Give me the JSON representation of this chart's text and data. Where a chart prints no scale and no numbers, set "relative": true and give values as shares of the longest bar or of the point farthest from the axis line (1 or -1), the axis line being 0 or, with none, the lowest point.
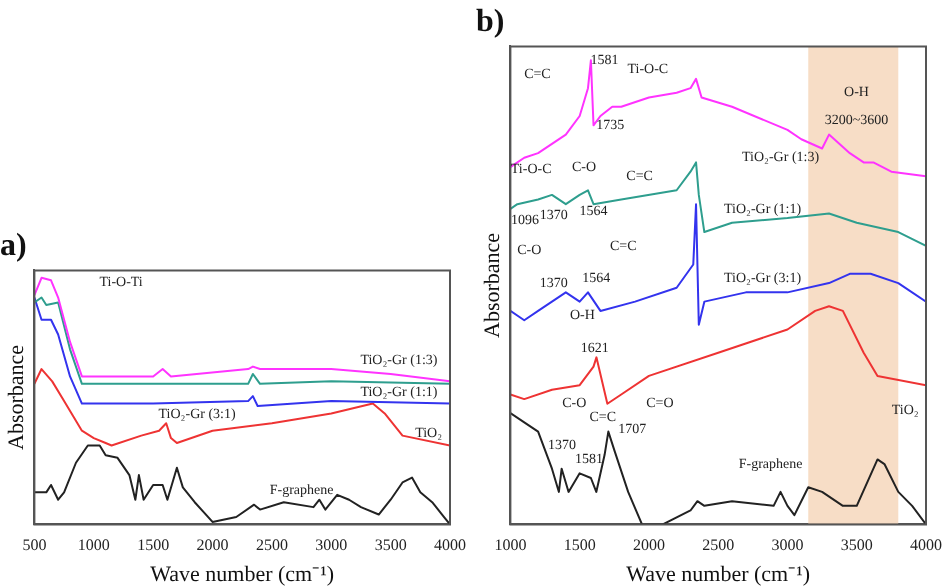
{
  "chart_data": [
    {
      "type": "line",
      "title": "a)",
      "xlabel": "Wave number (cm⁻¹)",
      "ylabel": "Absorbance",
      "relative": true,
      "tick_labels": "x",
      "xlim": [
        500,
        4000
      ],
      "xticks": [
        500,
        1000,
        1500,
        2000,
        2500,
        3000,
        3500,
        4000
      ],
      "series": [
        {
          "name": "TiO₂-Gr (1:3)",
          "color": "#ff33ff",
          "x": [
            500,
            560,
            640,
            700,
            800,
            900,
            1500,
            1580,
            1650,
            2300,
            2340,
            2400,
            3000,
            3500,
            4000
          ],
          "values": [
            0.93,
            1.0,
            0.99,
            0.92,
            0.74,
            0.6,
            0.6,
            0.63,
            0.6,
            0.63,
            0.64,
            0.63,
            0.63,
            0.61,
            0.58
          ]
        },
        {
          "name": "TiO₂-Gr (1:1)",
          "color": "#2e9e8e",
          "x": [
            500,
            560,
            600,
            700,
            800,
            900,
            1500,
            2300,
            2340,
            2400,
            3000,
            4000
          ],
          "values": [
            0.9,
            0.92,
            0.89,
            0.9,
            0.71,
            0.57,
            0.57,
            0.57,
            0.61,
            0.57,
            0.58,
            0.57
          ]
        },
        {
          "name": "TiO₂-Gr (3:1)",
          "color": "#3333ee",
          "x": [
            500,
            560,
            640,
            700,
            800,
            900,
            1500,
            2300,
            2340,
            2380,
            3000,
            4000
          ],
          "values": [
            0.92,
            0.83,
            0.83,
            0.77,
            0.6,
            0.49,
            0.49,
            0.5,
            0.52,
            0.48,
            0.5,
            0.49
          ]
        },
        {
          "name": "TiO₂",
          "color": "#ee3333",
          "x": [
            500,
            560,
            650,
            750,
            900,
            1000,
            1100,
            1150,
            1400,
            1550,
            1610,
            1650,
            1700,
            2000,
            2500,
            3000,
            3350,
            3450,
            3600,
            4000
          ],
          "values": [
            0.57,
            0.63,
            0.58,
            0.5,
            0.38,
            0.35,
            0.33,
            0.32,
            0.36,
            0.38,
            0.41,
            0.35,
            0.33,
            0.38,
            0.41,
            0.45,
            0.49,
            0.45,
            0.36,
            0.32
          ]
        },
        {
          "name": "F-graphene",
          "color": "#222222",
          "x": [
            500,
            600,
            640,
            700,
            750,
            850,
            950,
            1050,
            1100,
            1200,
            1300,
            1350,
            1380,
            1420,
            1500,
            1580,
            1620,
            1700,
            1750,
            1850,
            2000,
            2200,
            2350,
            2400,
            2600,
            2850,
            2900,
            2950,
            3050,
            3150,
            3250,
            3400,
            3500,
            3600,
            3680,
            3750,
            3850,
            3950,
            4000
          ],
          "values": [
            0.13,
            0.13,
            0.16,
            0.1,
            0.13,
            0.25,
            0.32,
            0.32,
            0.28,
            0.27,
            0.2,
            0.1,
            0.2,
            0.1,
            0.16,
            0.16,
            0.1,
            0.23,
            0.15,
            0.09,
            0.01,
            0.03,
            0.08,
            0.06,
            0.09,
            0.07,
            0.1,
            0.06,
            0.12,
            0.1,
            0.07,
            0.04,
            0.1,
            0.17,
            0.19,
            0.13,
            0.09,
            0.03,
            0.0
          ]
        }
      ],
      "annotations": [
        "Ti-O-Ti"
      ]
    },
    {
      "type": "line",
      "title": "b)",
      "xlabel": "Wave number (cm⁻¹)",
      "ylabel": "Absorbance",
      "relative": true,
      "tick_labels": "x",
      "xlim": [
        1000,
        4000
      ],
      "xticks": [
        1000,
        1500,
        2000,
        2500,
        3000,
        3500,
        4000
      ],
      "bands": [
        {
          "axis": "x",
          "from": 3150,
          "to": 3800,
          "color": "#f5d5b8"
        }
      ],
      "series": [
        {
          "name": "TiO₂-Gr (1:3)",
          "color": "#ff33ff",
          "x": [
            1000,
            1100,
            1200,
            1400,
            1500,
            1560,
            1581,
            1600,
            1650,
            1735,
            1800,
            2000,
            2200,
            2300,
            2340,
            2380,
            2600,
            3000,
            3100,
            3250,
            3300,
            3450,
            3550,
            3620,
            3750,
            4000
          ],
          "values": [
            0.77,
            0.79,
            0.8,
            0.84,
            0.88,
            0.94,
            1.0,
            0.86,
            0.88,
            0.9,
            0.9,
            0.92,
            0.93,
            0.94,
            0.96,
            0.92,
            0.9,
            0.85,
            0.83,
            0.81,
            0.84,
            0.8,
            0.78,
            0.78,
            0.76,
            0.75
          ]
        },
        {
          "name": "TiO₂-Gr (1:1)",
          "color": "#2e9e8e",
          "x": [
            1000,
            1050,
            1200,
            1300,
            1400,
            1500,
            1560,
            1600,
            1800,
            2200,
            2300,
            2340,
            2360,
            2400,
            2600,
            3000,
            3300,
            3500,
            3800,
            4000
          ],
          "values": [
            0.68,
            0.69,
            0.7,
            0.71,
            0.69,
            0.71,
            0.72,
            0.69,
            0.7,
            0.72,
            0.76,
            0.78,
            0.71,
            0.63,
            0.65,
            0.66,
            0.67,
            0.65,
            0.63,
            0.6
          ]
        },
        {
          "name": "TiO₂-Gr (3:1)",
          "color": "#3333ee",
          "x": [
            1000,
            1100,
            1200,
            1400,
            1500,
            1560,
            1650,
            1900,
            2200,
            2320,
            2340,
            2360,
            2400,
            2700,
            3000,
            3300,
            3450,
            3600,
            3800,
            4000
          ],
          "values": [
            0.46,
            0.44,
            0.46,
            0.5,
            0.48,
            0.5,
            0.46,
            0.48,
            0.51,
            0.56,
            0.69,
            0.43,
            0.48,
            0.5,
            0.5,
            0.52,
            0.54,
            0.54,
            0.52,
            0.48
          ]
        },
        {
          "name": "TiO₂",
          "color": "#ee3333",
          "x": [
            1000,
            1100,
            1300,
            1500,
            1600,
            1621,
            1700,
            1800,
            2000,
            2500,
            3000,
            3200,
            3300,
            3400,
            3550,
            3650,
            4000
          ],
          "values": [
            0.28,
            0.27,
            0.29,
            0.3,
            0.34,
            0.36,
            0.26,
            0.28,
            0.32,
            0.37,
            0.42,
            0.46,
            0.47,
            0.46,
            0.37,
            0.32,
            0.3
          ]
        },
        {
          "name": "F-graphene",
          "color": "#222222",
          "x": [
            1000,
            1100,
            1200,
            1300,
            1350,
            1370,
            1420,
            1500,
            1581,
            1620,
            1680,
            1707,
            1750,
            1850,
            1950,
            2100,
            2300,
            2350,
            2400,
            2600,
            2900,
            2950,
            3000,
            3050,
            3150,
            3250,
            3400,
            3500,
            3650,
            3700,
            3800,
            3900,
            4000
          ],
          "values": [
            0.24,
            0.22,
            0.2,
            0.12,
            0.07,
            0.12,
            0.07,
            0.11,
            0.1,
            0.07,
            0.15,
            0.2,
            0.16,
            0.07,
            0.0,
            0.0,
            0.03,
            0.05,
            0.04,
            0.05,
            0.04,
            0.07,
            0.04,
            0.02,
            0.08,
            0.07,
            0.04,
            0.04,
            0.14,
            0.13,
            0.07,
            0.04,
            0.0
          ]
        }
      ],
      "annotations": [
        "C=C",
        "1581",
        "Ti-O-C",
        "1735",
        "O-H",
        "3200~3600",
        "Ti-O-C",
        "1096",
        "C-O",
        "1370",
        "1564",
        "C=C",
        "C-O",
        "1370",
        "C=C",
        "1564",
        "O-H",
        "1621",
        "C-O",
        "1370",
        "C=C",
        "1581",
        "C=O",
        "1707"
      ]
    }
  ]
}
